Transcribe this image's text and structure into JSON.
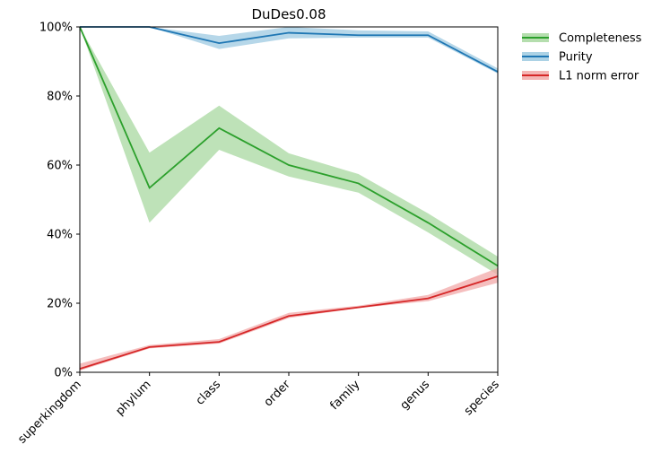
{
  "chart_data": {
    "type": "line",
    "title": "DuDes0.08",
    "xlabel": "",
    "ylabel": "",
    "categories": [
      "superkingdom",
      "phylum",
      "class",
      "order",
      "family",
      "genus",
      "species"
    ],
    "ylim": [
      0,
      100
    ],
    "yticks": [
      0,
      20,
      40,
      60,
      80,
      100
    ],
    "ytick_labels": [
      "0%",
      "20%",
      "40%",
      "60%",
      "80%",
      "100%"
    ],
    "grid": false,
    "legend_position": "outside-top-right",
    "series": [
      {
        "name": "Completeness",
        "color": "#2ca02c",
        "band_color": "#a8d8a0",
        "values": [
          100,
          53.4,
          70.7,
          60.0,
          54.7,
          43.3,
          30.8
        ],
        "lower": [
          100,
          43.3,
          64.4,
          56.7,
          52.0,
          40.5,
          28.2
        ],
        "upper": [
          100,
          63.6,
          77.2,
          63.4,
          57.4,
          46.0,
          33.5
        ]
      },
      {
        "name": "Purity",
        "color": "#1f77b4",
        "band_color": "#9ecae1",
        "values": [
          100,
          100,
          95.3,
          98.3,
          97.6,
          97.6,
          87.0
        ],
        "lower": [
          100,
          100,
          93.6,
          96.7,
          96.9,
          96.9,
          86.5
        ],
        "upper": [
          100,
          100,
          97.4,
          100,
          99.0,
          98.7,
          88.0
        ]
      },
      {
        "name": "L1 norm error",
        "color": "#d62728",
        "band_color": "#f2a8a8",
        "values": [
          1.0,
          7.3,
          8.8,
          16.3,
          18.8,
          21.4,
          27.8
        ],
        "lower": [
          0.5,
          6.9,
          8.3,
          15.7,
          18.6,
          20.6,
          25.9
        ],
        "upper": [
          2.5,
          7.9,
          9.6,
          17.2,
          19.3,
          22.4,
          30.2
        ]
      }
    ]
  }
}
